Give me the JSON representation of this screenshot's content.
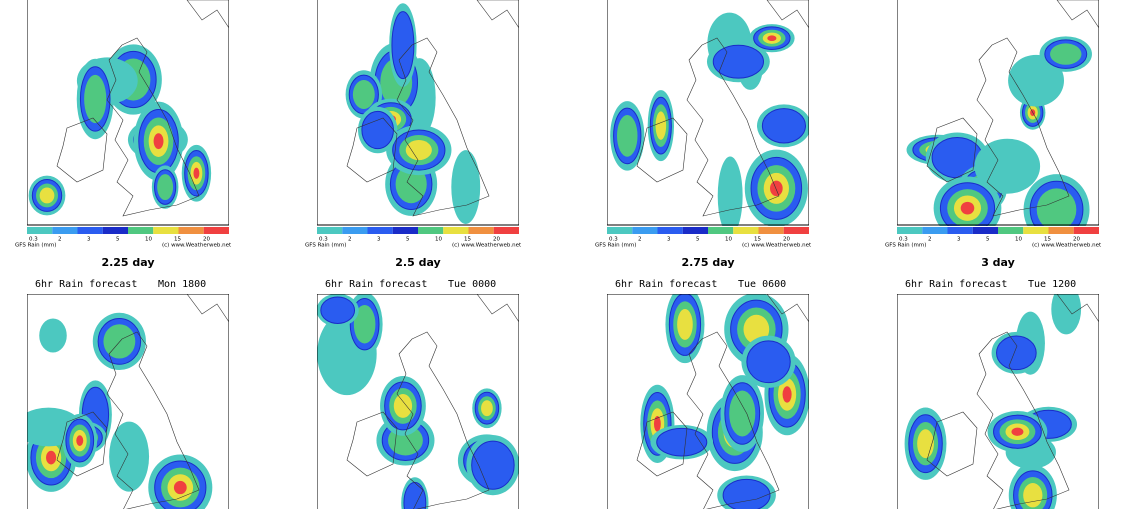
{
  "legend": {
    "title": "GFS Rain (mm)",
    "credit": "(c) www.Weatherweb.net",
    "levels": [
      0.3,
      2,
      3,
      5,
      10,
      15,
      20
    ],
    "colors": [
      "#4cc8c0",
      "#3a9cf0",
      "#2a5cf0",
      "#1a2cc8",
      "#50c880",
      "#e8e040",
      "#f09040",
      "#f04040"
    ]
  },
  "top_row": [
    {
      "caption": "2.25 day"
    },
    {
      "caption": "2.5 day"
    },
    {
      "caption": "2.75 day"
    },
    {
      "caption": "3 day"
    }
  ],
  "bottom_row": [
    {
      "title": "6hr Rain forecast",
      "time": "Mon 1800"
    },
    {
      "title": "6hr Rain forecast",
      "time": "Tue 0000"
    },
    {
      "title": "6hr Rain forecast",
      "time": "Tue 0600"
    },
    {
      "title": "6hr Rain forecast",
      "time": "Tue 1200"
    }
  ]
}
